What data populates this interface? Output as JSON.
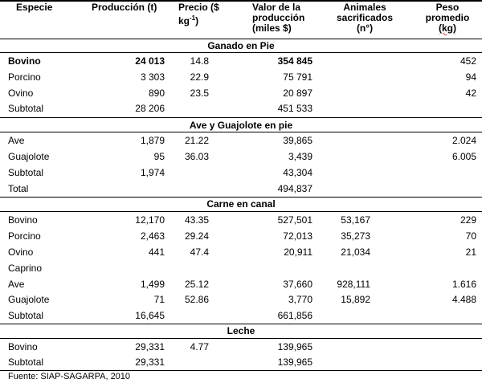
{
  "header": {
    "especie": "Especie",
    "produccion": "Producción (t)",
    "precio_l1": "Precio ($",
    "precio_l2_a": "kg",
    "precio_l2_sup": "-1",
    "precio_l2_b": ")",
    "valor_l1": "Valor de la",
    "valor_l2": "producción",
    "valor_l3": "(miles $)",
    "animales_l1": "Animales",
    "animales_l2": "sacrificados",
    "animales_l3": "(n°)",
    "peso_l1": "Peso",
    "peso_l2": "promedio",
    "peso_l3": "(kg)"
  },
  "sections": {
    "ganado": "Ganado en Pie",
    "ave": "Ave y Guajolote en pie",
    "carne": "Carne en canal",
    "leche": "Leche"
  },
  "rows": {
    "g1": {
      "especie": "Bovino",
      "prod": "24 013",
      "precio": "14.8",
      "valor": "354 845",
      "anim": "",
      "peso": "452"
    },
    "g2": {
      "especie": "Porcino",
      "prod": "3 303",
      "precio": "22.9",
      "valor": "75 791",
      "anim": "",
      "peso": "94"
    },
    "g3": {
      "especie": "Ovino",
      "prod": "890",
      "precio": "23.5",
      "valor": "20 897",
      "anim": "",
      "peso": "42"
    },
    "g4": {
      "especie": "Subtotal",
      "prod": "28 206",
      "precio": "",
      "valor": "451 533",
      "anim": "",
      "peso": ""
    },
    "a1": {
      "especie": "Ave",
      "prod": "1,879",
      "precio": "21.22",
      "valor": "39,865",
      "anim": "",
      "peso": "2.024"
    },
    "a2": {
      "especie": "Guajolote",
      "prod": "95",
      "precio": "36.03",
      "valor": "3,439",
      "anim": "",
      "peso": "6.005"
    },
    "a3": {
      "especie": "Subtotal",
      "prod": "1,974",
      "precio": "",
      "valor": "43,304",
      "anim": "",
      "peso": ""
    },
    "a4": {
      "especie": "Total",
      "prod": "",
      "precio": "",
      "valor": "494,837",
      "anim": "",
      "peso": ""
    },
    "c1": {
      "especie": "Bovino",
      "prod": "12,170",
      "precio": "43.35",
      "valor": "527,501",
      "anim": "53,167",
      "peso": "229"
    },
    "c2": {
      "especie": "Porcino",
      "prod": "2,463",
      "precio": "29.24",
      "valor": "72,013",
      "anim": "35,273",
      "peso": "70"
    },
    "c3": {
      "especie": "Ovino",
      "prod": "441",
      "precio": "47.4",
      "valor": "20,911",
      "anim": "21,034",
      "peso": "21"
    },
    "c4": {
      "especie": "Caprino",
      "prod": "",
      "precio": "",
      "valor": "",
      "anim": "",
      "peso": ""
    },
    "c5": {
      "especie": "Ave",
      "prod": "1,499",
      "precio": "25.12",
      "valor": "37,660",
      "anim": "928,111",
      "peso": "1.616"
    },
    "c6": {
      "especie": "Guajolote",
      "prod": "71",
      "precio": "52.86",
      "valor": "3,770",
      "anim": "15,892",
      "peso": "4.488"
    },
    "c7": {
      "especie": "Subtotal",
      "prod": "16,645",
      "precio": "",
      "valor": "661,856",
      "anim": "",
      "peso": ""
    },
    "l1": {
      "especie": "Bovino",
      "prod": "29,331",
      "precio": "4.77",
      "valor": "139,965",
      "anim": "",
      "peso": ""
    },
    "l2": {
      "especie": "Subtotal",
      "prod": "29,331",
      "precio": "",
      "valor": "139,965",
      "anim": "",
      "peso": ""
    }
  },
  "footer": "Fuente: SIAP-SAGARPA, 2010"
}
